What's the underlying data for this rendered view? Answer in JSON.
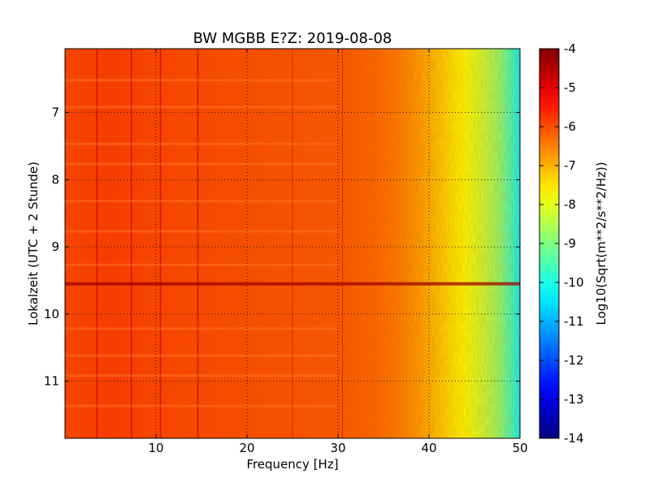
{
  "chart_data": {
    "type": "heatmap",
    "title": "BW MGBB E?Z: 2019-08-08",
    "xlabel": "Frequency [Hz]",
    "ylabel": "Lokalzeit (UTC + 2 Stunde)",
    "xlim": [
      0,
      50
    ],
    "ylim": [
      11.85,
      6.05
    ],
    "x_ticks": [
      "10",
      "20",
      "30",
      "40",
      "50"
    ],
    "y_ticks": [
      "7",
      "8",
      "9",
      "10",
      "11"
    ],
    "grid": true,
    "colormap": "jet",
    "colorbar": {
      "label": "Log10(Sqrt(m**2/s**2/Hz))",
      "min": -14,
      "max": -4,
      "ticks": [
        "-4",
        "-5",
        "-6",
        "-7",
        "-8",
        "-9",
        "-10",
        "-11",
        "-12",
        "-13",
        "-14"
      ]
    },
    "spectral_profile": {
      "frequency_hz": [
        0,
        5,
        10,
        20,
        30,
        34,
        37,
        39,
        40,
        41,
        42,
        43,
        44,
        45,
        46,
        47,
        48,
        49,
        50
      ],
      "log10_amplitude": [
        -5.9,
        -5.8,
        -5.9,
        -6.0,
        -6.1,
        -6.25,
        -6.5,
        -6.8,
        -7.0,
        -7.2,
        -7.4,
        -7.6,
        -7.8,
        -8.0,
        -8.3,
        -8.6,
        -9.0,
        -9.6,
        -10.3
      ]
    },
    "line_features_hz": [
      3.5,
      7.3,
      10.5,
      14.6,
      25.0,
      30.5
    ],
    "event_time": 9.55
  }
}
